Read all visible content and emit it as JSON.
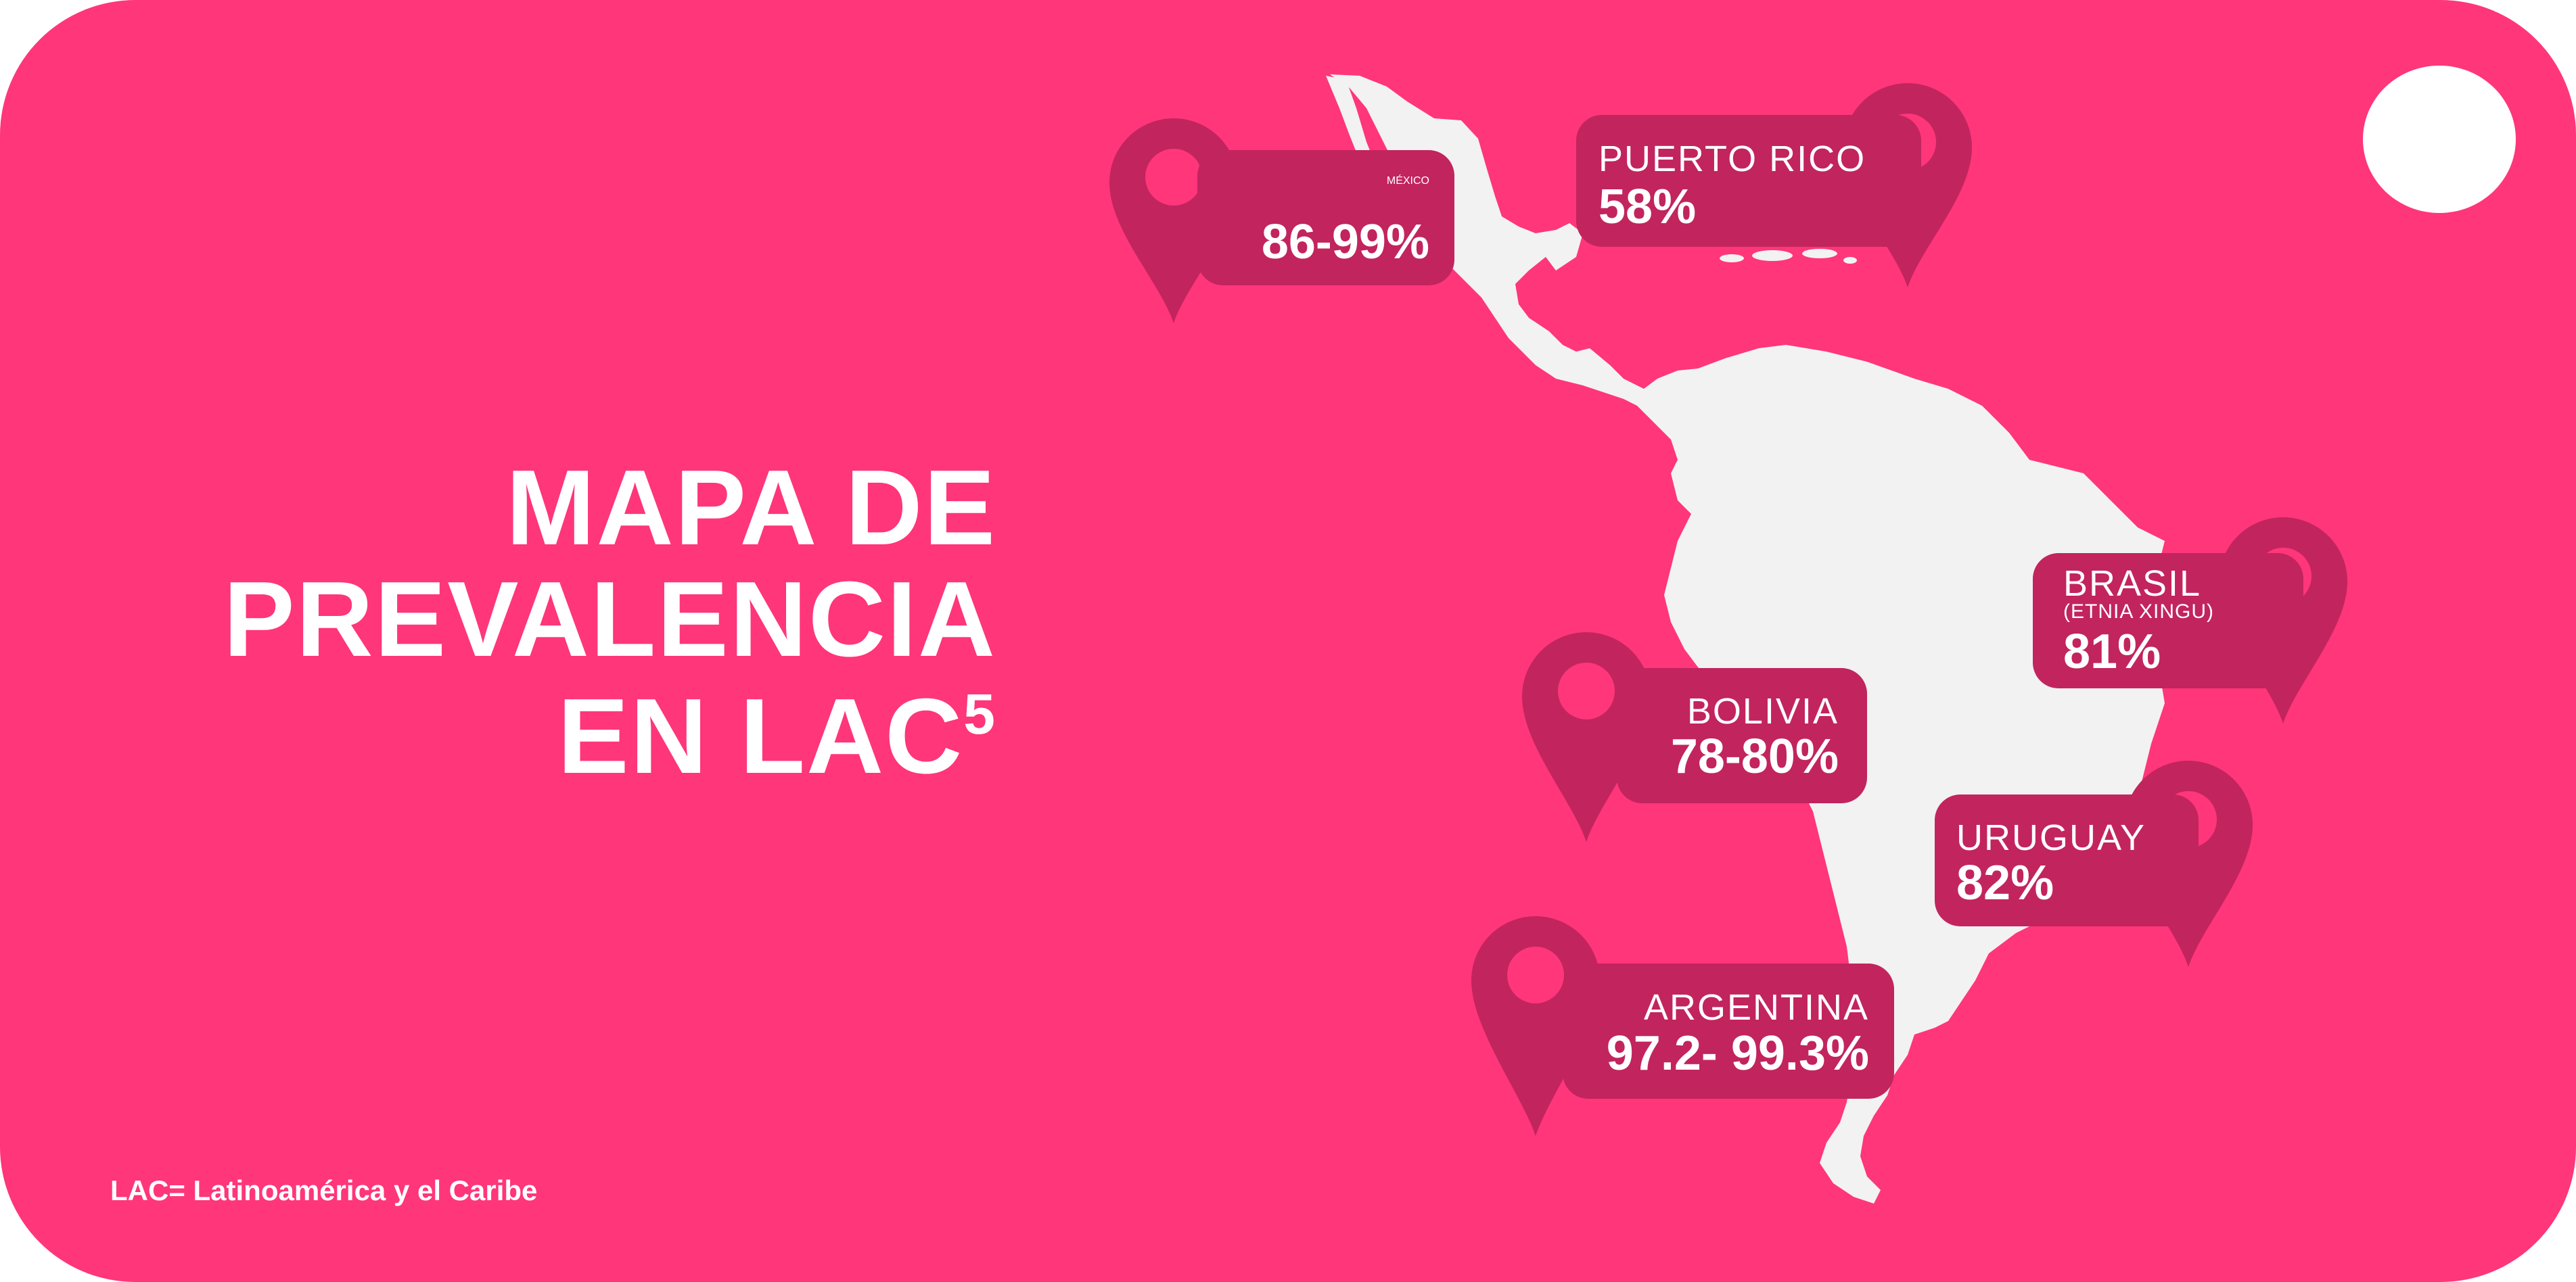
{
  "title": {
    "line1": "MAPA DE",
    "line2": "PREVALENCIA",
    "line3": "EN LAC",
    "superscript": "5"
  },
  "footnote": "LAC= Latinoamérica y el Caribe",
  "close_icon": "close-x-icon",
  "colors": {
    "background": "#ff3679",
    "pin": "#c2245e",
    "land": "#f2f2f2",
    "text": "#ffffff"
  },
  "pins": {
    "mexico": {
      "name": "MÉXICO",
      "value": "86-99%"
    },
    "puerto_rico": {
      "name": "PUERTO RICO",
      "value": "58%"
    },
    "brasil": {
      "name": "BRASIL",
      "sub": "(ETNIA XINGU)",
      "value": "81%"
    },
    "bolivia": {
      "name": "BOLIVIA",
      "value": "78-80%"
    },
    "uruguay": {
      "name": "URUGUAY",
      "value": "82%"
    },
    "argentina": {
      "name": "ARGENTINA",
      "value": "97.2- 99.3%"
    }
  }
}
